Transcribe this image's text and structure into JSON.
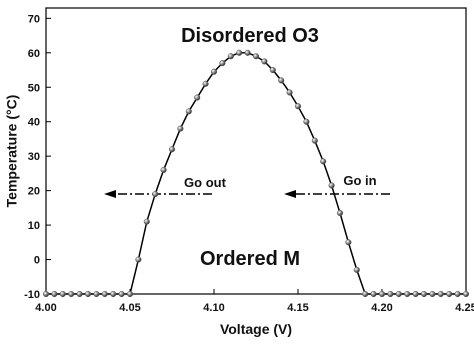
{
  "chart_data": {
    "type": "line",
    "annotations": [
      "Disordered  O3",
      "Ordered  M",
      "Go out",
      "Go in"
    ],
    "xlabel": "Voltage (V)",
    "ylabel": "Temperature (°C)",
    "x": [
      4.0,
      4.005,
      4.01,
      4.015,
      4.02,
      4.025,
      4.03,
      4.035,
      4.04,
      4.045,
      4.05,
      4.055,
      4.06,
      4.065,
      4.07,
      4.075,
      4.08,
      4.085,
      4.09,
      4.095,
      4.1,
      4.105,
      4.11,
      4.115,
      4.12,
      4.125,
      4.13,
      4.135,
      4.14,
      4.145,
      4.15,
      4.155,
      4.16,
      4.165,
      4.17,
      4.175,
      4.18,
      4.185,
      4.19,
      4.195,
      4.2,
      4.205,
      4.21,
      4.215,
      4.22,
      4.225,
      4.23,
      4.235,
      4.24,
      4.245,
      4.25
    ],
    "values": [
      -10,
      -10,
      -10,
      -10,
      -10,
      -10,
      -10,
      -10,
      -10,
      -10,
      -10,
      0,
      11,
      19,
      26,
      32,
      38,
      43,
      47,
      51,
      54.5,
      57,
      59,
      60,
      60,
      59,
      57.5,
      55,
      52,
      48.5,
      44.5,
      40,
      34.5,
      28.5,
      21.5,
      13.5,
      5,
      -3,
      -10,
      -10,
      -10,
      -10,
      -10,
      -10,
      -10,
      -10,
      -10,
      -10,
      -10,
      -10,
      -10
    ],
    "color": "#000000",
    "marker_color": "#555555",
    "xlim": [
      4.0,
      4.25
    ],
    "xticks": [
      {
        "value": 4.0,
        "label": "4.00"
      },
      4.05,
      {
        "value": 4.1,
        "label": "4.10"
      },
      4.15,
      {
        "value": 4.2,
        "label": "4.20"
      },
      4.25
    ],
    "ylim": [
      -10,
      73
    ],
    "yticks": [
      -10,
      0,
      10,
      20,
      30,
      40,
      50,
      60,
      70
    ]
  }
}
